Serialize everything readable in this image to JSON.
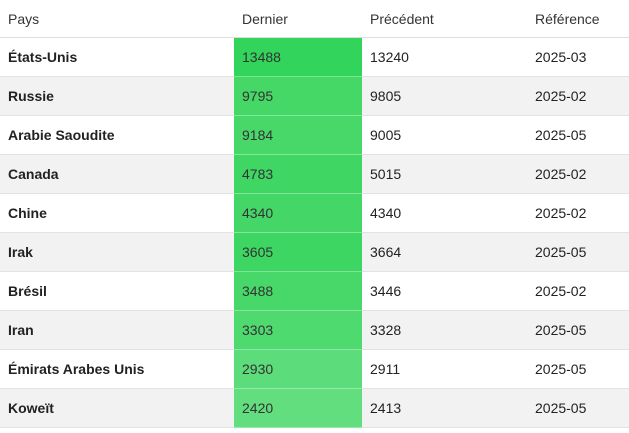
{
  "table": {
    "headers": {
      "country": "Pays",
      "last": "Dernier",
      "previous": "Précédent",
      "reference": "Référence"
    },
    "rows": [
      {
        "country": "États-Unis",
        "last": "13488",
        "previous": "13240",
        "reference": "2025-03",
        "heat_color": "#33d45b"
      },
      {
        "country": "Russie",
        "last": "9795",
        "previous": "9805",
        "reference": "2025-02",
        "heat_color": "#45d867"
      },
      {
        "country": "Arabie Saoudite",
        "last": "9184",
        "previous": "9005",
        "reference": "2025-05",
        "heat_color": "#47d869"
      },
      {
        "country": "Canada",
        "last": "4783",
        "previous": "5015",
        "reference": "2025-02",
        "heat_color": "#3fd664"
      },
      {
        "country": "Chine",
        "last": "4340",
        "previous": "4340",
        "reference": "2025-02",
        "heat_color": "#44d767"
      },
      {
        "country": "Irak",
        "last": "3605",
        "previous": "3664",
        "reference": "2025-05",
        "heat_color": "#3dd662"
      },
      {
        "country": "Brésil",
        "last": "3488",
        "previous": "3446",
        "reference": "2025-02",
        "heat_color": "#48d86a"
      },
      {
        "country": "Iran",
        "last": "3303",
        "previous": "3328",
        "reference": "2025-05",
        "heat_color": "#4fda70"
      },
      {
        "country": "Émirats Arabes Unis",
        "last": "2930",
        "previous": "2911",
        "reference": "2025-05",
        "heat_color": "#5cdc7a"
      },
      {
        "country": "Koweït",
        "last": "2420",
        "previous": "2413",
        "reference": "2025-05",
        "heat_color": "#62de7f"
      }
    ]
  }
}
